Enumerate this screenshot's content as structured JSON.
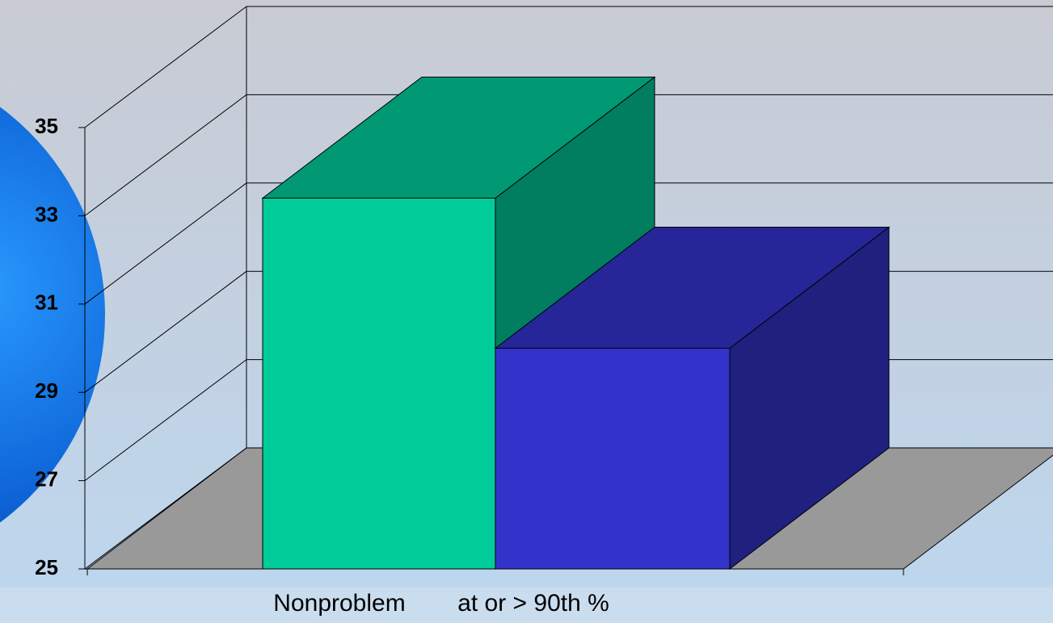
{
  "chart_data": {
    "type": "bar3d",
    "categories": [
      "Nonproblem",
      "at or > 90th %"
    ],
    "values": [
      33.4,
      30.0
    ],
    "colors": [
      "#00cc99",
      "#3333cc"
    ],
    "ylim": [
      25,
      35
    ],
    "yticks": [
      25,
      27,
      29,
      31,
      33,
      35
    ],
    "grid": true
  }
}
